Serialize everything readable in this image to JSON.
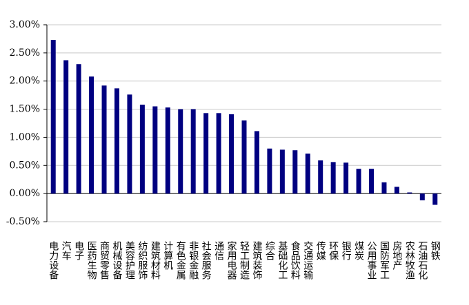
{
  "chart_data": {
    "type": "bar",
    "color": "#000080",
    "grid": true,
    "categories": [
      "电力设备",
      "汽车",
      "电子",
      "医药生物",
      "商贸零售",
      "机械设备",
      "美容护理",
      "纺织服饰",
      "建筑材料",
      "计算机",
      "有色金属",
      "非银金融",
      "社会服务",
      "通信",
      "家用电器",
      "轻工制造",
      "建筑装饰",
      "综合",
      "基础化工",
      "食品饮料",
      "交通运输",
      "传媒",
      "环保",
      "银行",
      "煤炭",
      "公用事业",
      "国防军工",
      "房地产",
      "农林牧渔",
      "石油石化",
      "钢铁"
    ],
    "values": [
      2.73,
      2.37,
      2.3,
      2.08,
      1.92,
      1.87,
      1.76,
      1.58,
      1.55,
      1.53,
      1.5,
      1.5,
      1.43,
      1.43,
      1.41,
      1.3,
      1.11,
      0.8,
      0.78,
      0.77,
      0.71,
      0.59,
      0.56,
      0.55,
      0.44,
      0.44,
      0.2,
      0.12,
      0.02,
      -0.12,
      -0.2
    ],
    "ylim": [
      -0.5,
      3
    ],
    "yticks": [
      {
        "value": -0.5,
        "label": "-0.50%"
      },
      {
        "value": 0,
        "label": "0.00%"
      },
      {
        "value": 0.5,
        "label": "0.50%"
      },
      {
        "value": 1,
        "label": "1.00%"
      },
      {
        "value": 1.5,
        "label": "1.50%"
      },
      {
        "value": 2,
        "label": "2.00%"
      },
      {
        "value": 2.5,
        "label": "2.50%"
      },
      {
        "value": 3,
        "label": "3.00%"
      }
    ]
  }
}
